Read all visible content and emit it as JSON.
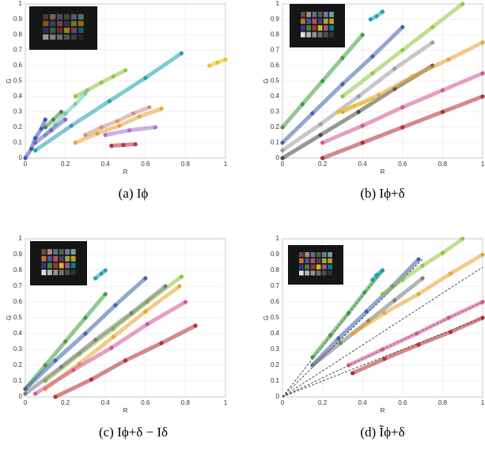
{
  "chart_data": [
    {
      "type": "scatter",
      "caption": "(a) Iϕ",
      "xlabel": "R",
      "ylabel": "G",
      "xlim": [
        0,
        1
      ],
      "ylim": [
        0,
        1
      ],
      "xticks": [
        0,
        0.2,
        0.4,
        0.6,
        0.8,
        1
      ],
      "yticks": [
        0,
        0.1,
        0.2,
        0.3,
        0.4,
        0.5,
        0.6,
        0.7,
        0.8,
        0.9,
        1
      ],
      "grid": true,
      "series": [
        {
          "color": "#1a9cb0",
          "x": [
            0.05,
            0.23,
            0.42,
            0.6,
            0.78
          ],
          "values": [
            0.05,
            0.21,
            0.37,
            0.52,
            0.68
          ]
        },
        {
          "color": "#e8c020",
          "x": [
            0.92,
            0.96,
            1
          ],
          "values": [
            0.6,
            0.62,
            0.64
          ]
        },
        {
          "color": "#8cc43c",
          "x": [
            0.25,
            0.31,
            0.38,
            0.44,
            0.5
          ],
          "values": [
            0.4,
            0.44,
            0.49,
            0.53,
            0.57
          ]
        },
        {
          "color": "#70c8b0",
          "x": [
            0.1,
            0.15,
            0.2,
            0.25,
            0.3
          ],
          "values": [
            0.15,
            0.22,
            0.29,
            0.35,
            0.42
          ]
        },
        {
          "color": "#3a8a3a",
          "x": [
            0.1,
            0.14,
            0.18
          ],
          "values": [
            0.2,
            0.25,
            0.3
          ]
        },
        {
          "color": "#3a4fb0",
          "x": [
            0,
            0.03,
            0.05,
            0.08,
            0.1
          ],
          "values": [
            0,
            0.06,
            0.13,
            0.19,
            0.25
          ]
        },
        {
          "color": "#7060c0",
          "x": [
            0.05,
            0.13,
            0.2
          ],
          "values": [
            0.1,
            0.18,
            0.25
          ]
        },
        {
          "color": "#c89080",
          "x": [
            0.3,
            0.38,
            0.46,
            0.54,
            0.62
          ],
          "values": [
            0.15,
            0.2,
            0.24,
            0.29,
            0.33
          ]
        },
        {
          "color": "#e8a030",
          "x": [
            0.25,
            0.36,
            0.47,
            0.57,
            0.68
          ],
          "values": [
            0.1,
            0.16,
            0.21,
            0.27,
            0.32
          ]
        },
        {
          "color": "#a070d0",
          "x": [
            0.4,
            0.52,
            0.65
          ],
          "values": [
            0.15,
            0.18,
            0.2
          ]
        },
        {
          "color": "#b02838",
          "x": [
            0.43,
            0.49,
            0.55
          ],
          "values": [
            0.08,
            0.085,
            0.09
          ]
        }
      ]
    },
    {
      "type": "scatter",
      "caption": "(b) Iϕ+δ",
      "xlabel": "R",
      "ylabel": "G",
      "xlim": [
        0,
        1
      ],
      "ylim": [
        0,
        1
      ],
      "xticks": [
        0,
        0.2,
        0.4,
        0.6,
        0.8,
        1
      ],
      "yticks": [
        0,
        0.1,
        0.2,
        0.3,
        0.4,
        0.5,
        0.6,
        0.7,
        0.8,
        0.9,
        1
      ],
      "grid": true,
      "series": [
        {
          "color": "#3a9a3a",
          "x": [
            0,
            0.1,
            0.2,
            0.3,
            0.4
          ],
          "values": [
            0.2,
            0.35,
            0.5,
            0.65,
            0.8
          ]
        },
        {
          "color": "#1a9cb0",
          "x": [
            0.44,
            0.47,
            0.5
          ],
          "values": [
            0.9,
            0.92,
            0.95
          ]
        },
        {
          "color": "#3a5fa8",
          "x": [
            0,
            0.15,
            0.3,
            0.45,
            0.6
          ],
          "values": [
            0.1,
            0.29,
            0.48,
            0.66,
            0.85
          ]
        },
        {
          "color": "#8cc43c",
          "x": [
            0.3,
            0.45,
            0.6,
            0.75,
            0.9
          ],
          "values": [
            0.4,
            0.55,
            0.7,
            0.85,
            1
          ]
        },
        {
          "color": "#999999",
          "x": [
            0,
            0.19,
            0.38,
            0.56,
            0.75
          ],
          "values": [
            0.05,
            0.22,
            0.4,
            0.58,
            0.75
          ]
        },
        {
          "color": "#444444",
          "x": [
            0,
            0.19,
            0.38,
            0.56,
            0.75
          ],
          "values": [
            0,
            0.15,
            0.3,
            0.45,
            0.6
          ]
        },
        {
          "color": "#e8a030",
          "x": [
            0.3,
            0.48,
            0.65,
            0.83,
            1
          ],
          "values": [
            0.3,
            0.41,
            0.53,
            0.64,
            0.75
          ]
        },
        {
          "color": "#d05090",
          "x": [
            0.2,
            0.4,
            0.6,
            0.8,
            1
          ],
          "values": [
            0.1,
            0.21,
            0.33,
            0.44,
            0.55
          ]
        },
        {
          "color": "#b02828",
          "x": [
            0.2,
            0.4,
            0.6,
            0.8,
            1
          ],
          "values": [
            0,
            0.1,
            0.2,
            0.3,
            0.4
          ]
        },
        {
          "color": "#e8c020",
          "x": [
            0.28,
            0.36,
            0.45
          ],
          "values": [
            0.3,
            0.34,
            0.38
          ]
        }
      ]
    },
    {
      "type": "scatter",
      "caption": "(c) Iϕ+δ − Iδ",
      "xlabel": "R",
      "ylabel": "G",
      "xlim": [
        0,
        1
      ],
      "ylim": [
        0,
        1
      ],
      "xticks": [
        0,
        0.2,
        0.4,
        0.6,
        0.8,
        1
      ],
      "yticks": [
        0,
        0.1,
        0.2,
        0.3,
        0.4,
        0.5,
        0.6,
        0.7,
        0.8,
        0.9,
        1
      ],
      "grid": true,
      "series": [
        {
          "color": "#3a9a3a",
          "x": [
            0,
            0.1,
            0.2,
            0.3,
            0.4
          ],
          "values": [
            0.05,
            0.2,
            0.35,
            0.5,
            0.65
          ]
        },
        {
          "color": "#1a9cb0",
          "x": [
            0.35,
            0.38,
            0.4
          ],
          "values": [
            0.75,
            0.78,
            0.8
          ]
        },
        {
          "color": "#3a5fa8",
          "x": [
            0,
            0.15,
            0.3,
            0.45,
            0.6
          ],
          "values": [
            0.05,
            0.23,
            0.4,
            0.58,
            0.75
          ]
        },
        {
          "color": "#8cc43c",
          "x": [
            0.1,
            0.27,
            0.44,
            0.61,
            0.78
          ],
          "values": [
            0.1,
            0.27,
            0.43,
            0.6,
            0.76
          ]
        },
        {
          "color": "#777777",
          "x": [
            0,
            0.18,
            0.35,
            0.53,
            0.7
          ],
          "values": [
            0.02,
            0.19,
            0.36,
            0.53,
            0.7
          ]
        },
        {
          "color": "#e8a030",
          "x": [
            0.1,
            0.27,
            0.44,
            0.6,
            0.77
          ],
          "values": [
            0.05,
            0.21,
            0.38,
            0.54,
            0.7
          ]
        },
        {
          "color": "#d05090",
          "x": [
            0.05,
            0.24,
            0.43,
            0.61,
            0.8
          ],
          "values": [
            0.02,
            0.17,
            0.31,
            0.46,
            0.6
          ]
        },
        {
          "color": "#b02828",
          "x": [
            0.15,
            0.33,
            0.5,
            0.68,
            0.85
          ],
          "values": [
            0,
            0.11,
            0.23,
            0.34,
            0.45
          ]
        }
      ]
    },
    {
      "type": "scatter",
      "caption": "(d) Ĩϕ+δ",
      "xlabel": "R",
      "ylabel": "G",
      "xlim": [
        0,
        1
      ],
      "ylim": [
        0,
        1
      ],
      "xticks": [
        0,
        0.2,
        0.4,
        0.6,
        0.8,
        1
      ],
      "yticks": [
        0,
        0.1,
        0.2,
        0.3,
        0.4,
        0.5,
        0.6,
        0.7,
        0.8,
        0.9,
        1
      ],
      "grid": true,
      "series": [
        {
          "color": "#3a9a3a",
          "x": [
            0.15,
            0.24,
            0.33,
            0.41,
            0.5
          ],
          "values": [
            0.25,
            0.39,
            0.53,
            0.66,
            0.8
          ]
        },
        {
          "color": "#1a9cb0",
          "x": [
            0.45,
            0.47,
            0.5
          ],
          "values": [
            0.74,
            0.77,
            0.8
          ]
        },
        {
          "color": "#3a5fa8",
          "x": [
            0.15,
            0.28,
            0.42,
            0.55,
            0.68
          ],
          "values": [
            0.2,
            0.37,
            0.54,
            0.7,
            0.87
          ]
        },
        {
          "color": "#8cc43c",
          "x": [
            0.5,
            0.6,
            0.7,
            0.8,
            0.9
          ],
          "values": [
            0.65,
            0.74,
            0.83,
            0.91,
            1
          ]
        },
        {
          "color": "#777777",
          "x": [
            0.15,
            0.29,
            0.43,
            0.56,
            0.7
          ],
          "values": [
            0.2,
            0.34,
            0.48,
            0.61,
            0.75
          ]
        },
        {
          "color": "#e8a030",
          "x": [
            0.35,
            0.51,
            0.68,
            0.84,
            1
          ],
          "values": [
            0.4,
            0.53,
            0.65,
            0.78,
            0.9
          ]
        },
        {
          "color": "#d05090",
          "x": [
            0.33,
            0.5,
            0.67,
            0.83,
            1
          ],
          "values": [
            0.2,
            0.3,
            0.4,
            0.5,
            0.6
          ]
        },
        {
          "color": "#b02828",
          "x": [
            0.35,
            0.51,
            0.68,
            0.84,
            1
          ],
          "values": [
            0.15,
            0.24,
            0.33,
            0.41,
            0.5
          ]
        }
      ],
      "reference_lines": [
        {
          "x": [
            0,
            0.5
          ],
          "values": [
            0,
            0.8
          ]
        },
        {
          "x": [
            0,
            0.7
          ],
          "values": [
            0,
            0.87
          ]
        },
        {
          "x": [
            0,
            1
          ],
          "values": [
            0,
            0.82
          ]
        },
        {
          "x": [
            0,
            1
          ],
          "values": [
            0,
            0.6
          ]
        },
        {
          "x": [
            0,
            1
          ],
          "values": [
            0,
            0.5
          ]
        }
      ]
    }
  ]
}
